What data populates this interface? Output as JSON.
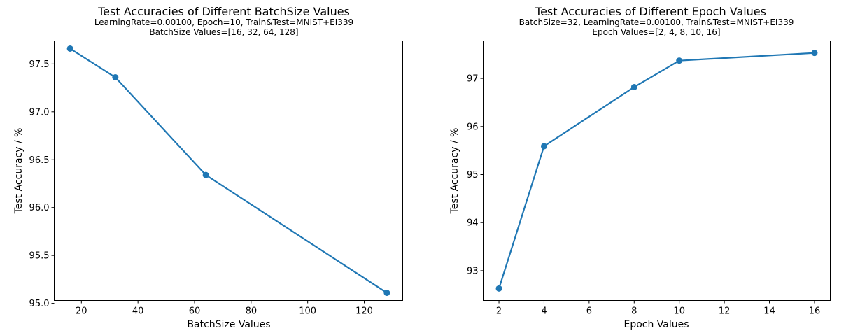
{
  "chart_data": [
    {
      "type": "line",
      "title": "Test Accuracies of Different BatchSize Values",
      "subtitle_lines": [
        "LearningRate=0.00100, Epoch=10, Train&Test=MNIST+EI339",
        "BatchSize Values=[16, 32, 64, 128]"
      ],
      "xlabel": "BatchSize Values",
      "ylabel": "Test Accuracy / %",
      "x": [
        16,
        32,
        64,
        128
      ],
      "y": [
        97.66,
        97.36,
        96.34,
        95.11
      ],
      "xlim": [
        10.4,
        133.6
      ],
      "ylim": [
        95.03,
        97.74
      ],
      "xticks": [
        20,
        40,
        60,
        80,
        100,
        120
      ],
      "xtick_labels": [
        "20",
        "40",
        "60",
        "80",
        "100",
        "120"
      ],
      "yticks": [
        95.0,
        95.5,
        96.0,
        96.5,
        97.0,
        97.5
      ],
      "ytick_labels": [
        "95.0",
        "95.5",
        "96.0",
        "96.5",
        "97.0",
        "97.5"
      ],
      "grid": false,
      "color": "#1f77b4"
    },
    {
      "type": "line",
      "title": "Test Accuracies of Different Epoch Values",
      "subtitle_lines": [
        "BatchSize=32, LearningRate=0.00100, Train&Test=MNIST+EI339",
        "Epoch Values=[2, 4, 8, 10, 16]"
      ],
      "xlabel": "Epoch Values",
      "ylabel": "Test Accuracy / %",
      "x": [
        2,
        4,
        8,
        10,
        16
      ],
      "y": [
        92.63,
        95.59,
        96.82,
        97.37,
        97.53
      ],
      "xlim": [
        1.3,
        16.7
      ],
      "ylim": [
        92.38,
        97.78
      ],
      "xticks": [
        2,
        4,
        6,
        8,
        10,
        12,
        14,
        16
      ],
      "xtick_labels": [
        "2",
        "4",
        "6",
        "8",
        "10",
        "12",
        "14",
        "16"
      ],
      "yticks": [
        93,
        94,
        95,
        96,
        97
      ],
      "ytick_labels": [
        "93",
        "94",
        "95",
        "96",
        "97"
      ],
      "grid": false,
      "color": "#1f77b4"
    }
  ]
}
